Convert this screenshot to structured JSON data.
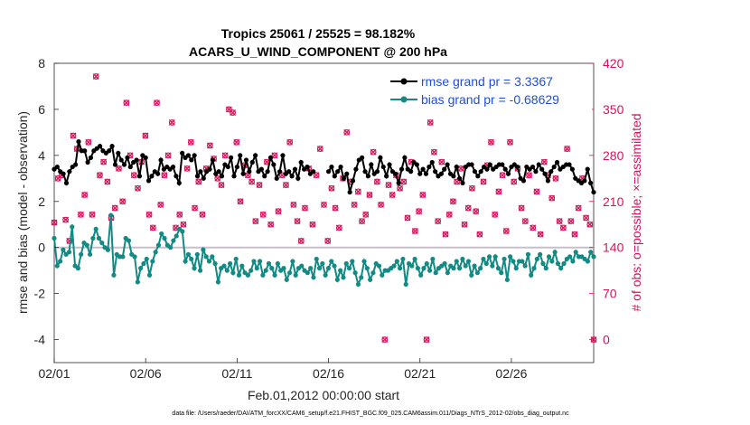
{
  "chart_data": {
    "type": "line",
    "title_line1": "Tropics 25061 / 25525 = 98.182%",
    "title_line2": "ACARS_U_WIND_COMPONENT @ 200 hPa",
    "ylabel": "rmse and bias (model - observation)",
    "ylabel_right": "# of obs: o=possible; ×=assimilated",
    "xlabel": "Feb.01,2012 00:00:00 start",
    "footnote": "data file: /Users/raeder/DAI/ATM_forcXX/CAM6_setup/f.e21.FHIST_BGC.f09_025.CAM6assim.011/Diags_NTrS_2012-02/obs_diag_output.nc",
    "ylim": [
      -5,
      8
    ],
    "yticks": [
      -4,
      -2,
      0,
      2,
      4,
      6,
      8
    ],
    "ylim_right": [
      -35,
      420
    ],
    "yticks_right": [
      0,
      70,
      140,
      210,
      280,
      350,
      420
    ],
    "xlim": [
      0,
      29.5
    ],
    "xticks": [
      0,
      5,
      10,
      15,
      20,
      25
    ],
    "xticklabels": [
      "02/01",
      "02/06",
      "02/11",
      "02/16",
      "02/21",
      "02/26"
    ],
    "series": [
      {
        "name": "rmse grand pr = 3.3367",
        "color": "#000000",
        "values": [
          3.4,
          3.5,
          3.3,
          3.2,
          2.8,
          3.3,
          3.5,
          3.6,
          4.6,
          4.2,
          4.2,
          3.7,
          3.9,
          4.2,
          4.3,
          4.4,
          4.2,
          4.1,
          4.2,
          4.4,
          3.6,
          4.1,
          3.8,
          3.6,
          3.9,
          3.5,
          3.7,
          3.8,
          3.1,
          4.0,
          3.9,
          2.9,
          3.1,
          3.3,
          3.2,
          3.8,
          3.4,
          3.5,
          3.4,
          3.5,
          3.1,
          2.8,
          4.1,
          3.9,
          4.0,
          3.8,
          4.0,
          3.1,
          3.3,
          3.0,
          3.3,
          3.4,
          3.8,
          3.2,
          3.3,
          3.1,
          3.6,
          3.5,
          3.9,
          3.1,
          3.5,
          4.0,
          3.2,
          3.8,
          3.3,
          3.7,
          4.0,
          3.3,
          3.4,
          3.1,
          3.3,
          3.9,
          3.6,
          3.0,
          3.3,
          4.0,
          3.2,
          3.3,
          3.1,
          3.4,
          3.0,
          3.7,
          3.4,
          3.5,
          3.2,
          3.3,
          null,
          null,
          null,
          null,
          3.3,
          3.5,
          3.1,
          3.3,
          3.5,
          3.0,
          3.2,
          2.4,
          2.9,
          3.4,
          3.8,
          3.9,
          3.3,
          3.1,
          3.6,
          3.2,
          3.3,
          3.9,
          3.5,
          3.1,
          3.6,
          3.3,
          3.2,
          2.8,
          3.4,
          3.9,
          3.4,
          3.3,
          3.7,
          3.6,
          3.2,
          3.4,
          3.2,
          3.5,
          3.7,
          3.3,
          3.1,
          3.2,
          3.4,
          3.6,
          3.2,
          3.1,
          3.5,
          3.0,
          2.8,
          3.5,
          3.6,
          3.6,
          3.3,
          3.1,
          3.3,
          3.5,
          3.4,
          3.6,
          3.4,
          3.5,
          3.6,
          3.6,
          3.4,
          3.2,
          3.5,
          3.6,
          3.5,
          3.0,
          2.9,
          3.5,
          3.4,
          3.5,
          3.3,
          3.6,
          3.4,
          3.2,
          2.9,
          3.3,
          3.5,
          3.7,
          3.4,
          3.5,
          3.6,
          3.6,
          3.4,
          3.0,
          2.9,
          2.8,
          2.9,
          3.4,
          2.8,
          2.4
        ]
      },
      {
        "name": "bias grand pr = -0.68629",
        "color": "#138a84",
        "values": [
          0.4,
          -0.8,
          -0.6,
          -0.1,
          -0.3,
          -0.2,
          0.9,
          -0.8,
          -0.9,
          -0.3,
          0.2,
          0.1,
          -0.3,
          0.4,
          0.8,
          0.4,
          0.2,
          0.0,
          -0.1,
          1.4,
          -1.2,
          -0.3,
          -0.4,
          -0.4,
          0.4,
          0.3,
          -0.3,
          -0.4,
          -1.5,
          -0.9,
          -0.7,
          -0.5,
          -1.2,
          -0.6,
          -0.2,
          0.1,
          0.6,
          0.4,
          0.1,
          0.0,
          0.3,
          0.5,
          0.8,
          0.7,
          -0.6,
          -0.3,
          -0.5,
          -0.9,
          -0.3,
          -1.0,
          -0.1,
          -0.4,
          -0.6,
          -0.4,
          -0.7,
          -1.5,
          -0.9,
          -0.8,
          -1.0,
          -0.7,
          -1.1,
          -0.5,
          -1.2,
          -0.8,
          -1.1,
          -1.2,
          -1.0,
          -0.6,
          -0.9,
          -0.6,
          -1.2,
          -1.0,
          -0.7,
          -0.9,
          -1.2,
          -0.7,
          -1.0,
          -0.9,
          -1.4,
          -1.1,
          -0.6,
          -1.2,
          -0.9,
          -0.8,
          -1.0,
          -1.1,
          -0.9,
          -1.3,
          -0.5,
          -0.9,
          -0.7,
          -1.2,
          -0.9,
          -0.6,
          -0.8,
          -1.4,
          -1.0,
          -1.3,
          -0.7,
          -0.9,
          -0.6,
          -1.1,
          -1.6,
          -1.3,
          -0.6,
          -0.9,
          -1.4,
          -1.1,
          -0.7,
          -0.8,
          -1.2,
          -1.0,
          -1.0,
          -0.9,
          -0.8,
          -0.6,
          -0.9,
          -0.5,
          -1.6,
          -0.7,
          -0.8,
          -0.5,
          -0.9,
          -1.2,
          -0.9,
          -0.7,
          -1.0,
          -0.5,
          -1.1,
          -0.9,
          -0.8,
          -0.7,
          -1.1,
          -0.8,
          -0.9,
          -0.6,
          -0.9,
          -0.5,
          -0.8,
          -0.6,
          -1.2,
          -0.8,
          -1.1,
          -0.9,
          -0.5,
          -0.7,
          -0.4,
          -0.8,
          -0.4,
          -0.9,
          -1.1,
          -0.5,
          -1.4,
          -0.4,
          -0.6,
          -0.9,
          -0.6,
          -0.6,
          -0.8,
          -0.3,
          -1.2,
          -0.9,
          -0.5,
          -0.3,
          -0.7,
          -0.9,
          -0.4,
          -0.6,
          -0.2,
          -0.7,
          -0.9,
          -0.7,
          -0.5,
          -0.4,
          -0.6,
          -0.2,
          -0.4,
          -0.4,
          -0.5,
          -0.6,
          -0.2,
          -0.4
        ]
      },
      {
        "name": "obs possible (o)",
        "color": "#d4145a",
        "values": [
          178,
          245,
          250,
          182,
          150,
          310,
          290,
          190,
          220,
          300,
          190,
          400,
          250,
          270,
          240,
          185,
          200,
          260,
          210,
          360,
          280,
          250,
          230,
          270,
          310,
          190,
          170,
          360,
          205,
          250,
          280,
          330,
          170,
          190,
          175,
          260,
          300,
          200,
          240,
          190,
          260,
          295,
          275,
          245,
          235,
          280,
          350,
          345,
          300,
          210,
          265,
          250,
          240,
          180,
          235,
          190,
          270,
          175,
          280,
          195,
          250,
          235,
          300,
          205,
          180,
          150,
          200,
          260,
          175,
          250,
          290,
          205,
          150,
          230,
          200,
          170,
          245,
          315,
          240,
          205,
          225,
          180,
          190,
          220,
          285,
          240,
          205,
          0,
          235,
          220,
          250,
          230,
          240,
          185,
          270,
          165,
          195,
          220,
          0,
          330,
          285,
          180,
          270,
          160,
          190,
          210,
          240,
          260,
          175,
          200,
          230,
          195,
          160,
          240,
          265,
          300,
          190,
          225,
          250,
          165,
          300,
          240,
          260,
          200,
          180,
          250,
          170,
          225,
          160,
          270,
          250,
          215,
          245,
          180,
          170,
          290,
          180,
          160,
          200,
          245,
          185,
          175,
          0
        ],
        "positions": "daily"
      }
    ],
    "legend_location": "top-right"
  }
}
